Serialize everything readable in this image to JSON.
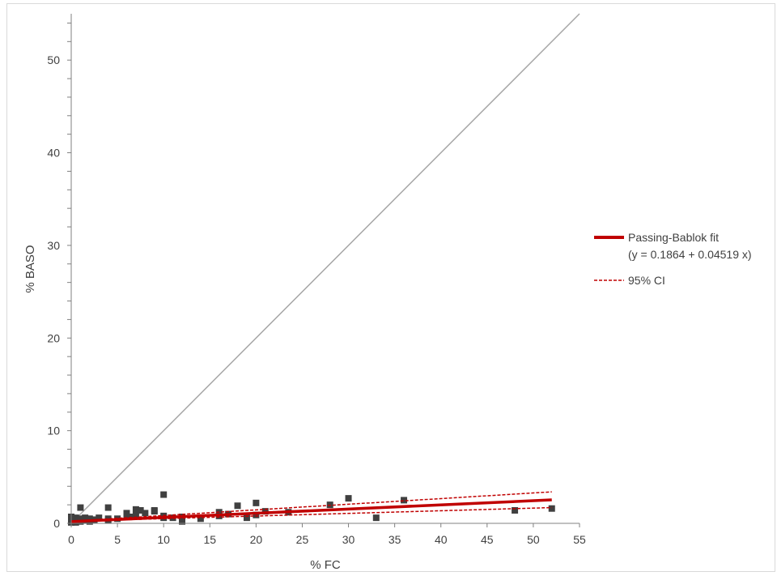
{
  "chart_data": {
    "type": "scatter",
    "title": "",
    "xlabel": "% FC",
    "ylabel": "% BASO",
    "xlim": [
      0,
      55
    ],
    "ylim": [
      0,
      55
    ],
    "xticks": [
      "0",
      "5",
      "10",
      "15",
      "20",
      "25",
      "30",
      "35",
      "40",
      "45",
      "50",
      "55"
    ],
    "yticks": [
      "0",
      "10",
      "20",
      "30",
      "40",
      "50"
    ],
    "grid": false,
    "legend_position": "right",
    "identity_line": {
      "from": [
        0,
        0
      ],
      "to": [
        55,
        55
      ],
      "color": "#a6a6a6"
    },
    "fit": {
      "name": "Passing-Bablok fit",
      "equation": "(y = 0.1864 + 0.04519 x)",
      "intercept": 0.1864,
      "slope": 0.04519,
      "x_range": [
        0,
        52
      ],
      "color": "#c00000"
    },
    "ci": {
      "name": "95% CI",
      "upper": [
        [
          1,
          0.3
        ],
        [
          52,
          3.4
        ]
      ],
      "lower": [
        [
          1,
          0.25
        ],
        [
          52,
          1.7
        ]
      ],
      "color": "#c00000"
    },
    "points": [
      [
        0,
        0.1
      ],
      [
        0,
        0.3
      ],
      [
        0,
        0.5
      ],
      [
        0,
        0.7
      ],
      [
        0.2,
        0.2
      ],
      [
        0.3,
        0.4
      ],
      [
        0.5,
        0.1
      ],
      [
        0.5,
        0.6
      ],
      [
        0.7,
        0.3
      ],
      [
        1,
        0.2
      ],
      [
        1,
        0.5
      ],
      [
        1,
        1.7
      ],
      [
        1.2,
        0.4
      ],
      [
        1.5,
        0.3
      ],
      [
        1.5,
        0.6
      ],
      [
        2,
        0.2
      ],
      [
        2,
        0.5
      ],
      [
        2.5,
        0.4
      ],
      [
        3,
        0.6
      ],
      [
        4,
        0.3
      ],
      [
        4,
        0.5
      ],
      [
        4,
        1.7
      ],
      [
        5,
        0.5
      ],
      [
        6,
        0.8
      ],
      [
        6,
        1.1
      ],
      [
        6.5,
        0.7
      ],
      [
        7,
        0.9
      ],
      [
        7,
        1.5
      ],
      [
        7.5,
        1.4
      ],
      [
        8,
        1.1
      ],
      [
        9,
        1.3
      ],
      [
        9,
        1.4
      ],
      [
        10,
        0.6
      ],
      [
        10,
        0.8
      ],
      [
        10,
        3.1
      ],
      [
        11,
        0.6
      ],
      [
        12,
        0.7
      ],
      [
        12,
        0.2
      ],
      [
        14,
        0.5
      ],
      [
        16,
        0.8
      ],
      [
        16,
        1.2
      ],
      [
        17,
        1.0
      ],
      [
        18,
        1.9
      ],
      [
        19,
        0.6
      ],
      [
        20,
        0.9
      ],
      [
        20,
        2.2
      ],
      [
        21,
        1.3
      ],
      [
        23.5,
        1.2
      ],
      [
        28,
        2.0
      ],
      [
        30,
        2.7
      ],
      [
        33,
        0.6
      ],
      [
        36,
        2.5
      ],
      [
        48,
        1.4
      ],
      [
        52,
        1.6
      ]
    ],
    "marker_color": "#404040"
  }
}
